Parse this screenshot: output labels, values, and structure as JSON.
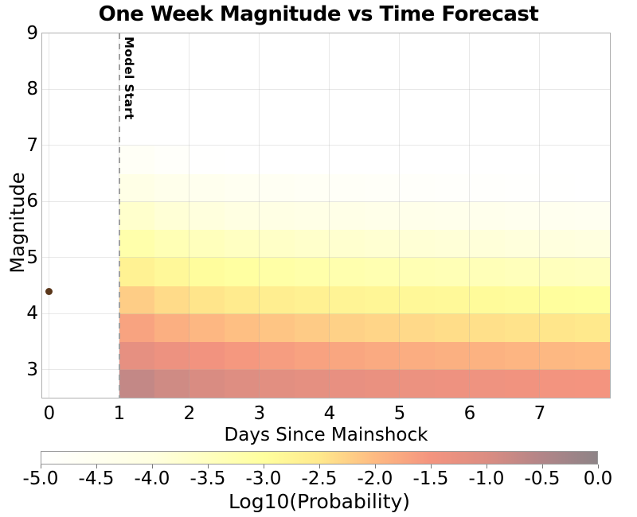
{
  "title": "One Week Magnitude vs Time Forecast",
  "chart_data": {
    "type": "heatmap",
    "title": "One Week Magnitude vs Time Forecast",
    "xlabel": "Days Since Mainshock",
    "ylabel": "Magnitude",
    "colorbar_label": "Log10(Probability)",
    "xlim": [
      -0.1,
      8.0
    ],
    "ylim": [
      2.5,
      9.0
    ],
    "grid": true,
    "gridline_color": "#e9e9e9",
    "x_tick_values": [
      0,
      1,
      2,
      3,
      4,
      5,
      6,
      7
    ],
    "x_tick_labels": [
      "0",
      "1",
      "2",
      "3",
      "4",
      "5",
      "6",
      "7"
    ],
    "y_tick_values": [
      3,
      4,
      5,
      6,
      7,
      8,
      9
    ],
    "y_tick_labels": [
      "3",
      "4",
      "5",
      "6",
      "7",
      "8",
      "9"
    ],
    "day_bin_edges": [
      1,
      1.5,
      2,
      2.5,
      3,
      3.5,
      4,
      4.5,
      5,
      5.5,
      6,
      6.5,
      7,
      7.5,
      8
    ],
    "magnitude_bin_edges": [
      2.5,
      3,
      3.5,
      4,
      4.5,
      5,
      5.5,
      6,
      6.5,
      7
    ],
    "rows_order": "ascending magnitude: first row is M2.5-3.0 bin, last row is M6.5-7.0 bin",
    "log10_probability": [
      [
        -0.7,
        -0.85,
        -0.96,
        -1.05,
        -1.12,
        -1.18,
        -1.24,
        -1.29,
        -1.33,
        -1.37,
        -1.4,
        -1.44,
        -1.47,
        -1.5
      ],
      [
        -1.2,
        -1.35,
        -1.46,
        -1.55,
        -1.62,
        -1.68,
        -1.74,
        -1.79,
        -1.83,
        -1.87,
        -1.9,
        -1.94,
        -1.97,
        -2.0
      ],
      [
        -1.7,
        -1.85,
        -1.96,
        -2.05,
        -2.12,
        -2.18,
        -2.24,
        -2.29,
        -2.33,
        -2.37,
        -2.4,
        -2.44,
        -2.47,
        -2.5
      ],
      [
        -2.2,
        -2.35,
        -2.46,
        -2.55,
        -2.62,
        -2.68,
        -2.74,
        -2.79,
        -2.83,
        -2.87,
        -2.9,
        -2.94,
        -2.97,
        -3.0
      ],
      [
        -2.7,
        -2.85,
        -2.96,
        -3.05,
        -3.12,
        -3.18,
        -3.24,
        -3.29,
        -3.33,
        -3.37,
        -3.4,
        -3.44,
        -3.47,
        -3.5
      ],
      [
        -3.2,
        -3.35,
        -3.46,
        -3.55,
        -3.62,
        -3.68,
        -3.74,
        -3.79,
        -3.83,
        -3.87,
        -3.9,
        -3.94,
        -3.97,
        -4.0
      ],
      [
        -3.7,
        -3.85,
        -3.96,
        -4.05,
        -4.12,
        -4.18,
        -4.24,
        -4.29,
        -4.33,
        -4.37,
        -4.4,
        -4.44,
        -4.47,
        -4.5
      ],
      [
        -4.2,
        -4.35,
        -4.46,
        -4.55,
        -4.62,
        -4.68,
        -4.74,
        -4.79,
        -4.83,
        -4.87,
        -4.9,
        -4.94,
        -4.97,
        -5.0
      ],
      [
        -4.7,
        -4.85,
        -4.96,
        -5.05,
        -5.12,
        -5.18,
        -5.24,
        -5.29,
        -5.33,
        -5.37,
        -5.4,
        -5.44,
        -5.47,
        -5.5
      ]
    ],
    "annotation": {
      "label": "Model Start",
      "x": 1,
      "line_color": "#a0a0a0",
      "text_color": "#000000"
    },
    "mainshock": {
      "day": 0,
      "magnitude": 4.4,
      "color": "#5a371b"
    },
    "colorbar": {
      "label": "Log10(Probability)",
      "min": -5,
      "max": 0,
      "tick_values": [
        -5,
        -4.5,
        -4,
        -3.5,
        -3,
        -2.5,
        -2,
        -1.5,
        -1,
        -0.5,
        0
      ],
      "tick_labels": [
        "-5.0",
        "-4.5",
        "-4.0",
        "-3.5",
        "-3.0",
        "-2.5",
        "-2.0",
        "-1.5",
        "-1.0",
        "-0.5",
        "0.0"
      ],
      "stops": [
        {
          "value": -5.0,
          "color": "#ffffff"
        },
        {
          "value": -4.0,
          "color": "#ffffe0"
        },
        {
          "value": -3.0,
          "color": "#ffff9e"
        },
        {
          "value": -2.5,
          "color": "#ffe98c"
        },
        {
          "value": -2.0,
          "color": "#feba82"
        },
        {
          "value": -1.5,
          "color": "#f4947f"
        },
        {
          "value": -1.0,
          "color": "#dc8d82"
        },
        {
          "value": -0.5,
          "color": "#b28588"
        },
        {
          "value": 0.0,
          "color": "#8e8487"
        }
      ]
    }
  }
}
